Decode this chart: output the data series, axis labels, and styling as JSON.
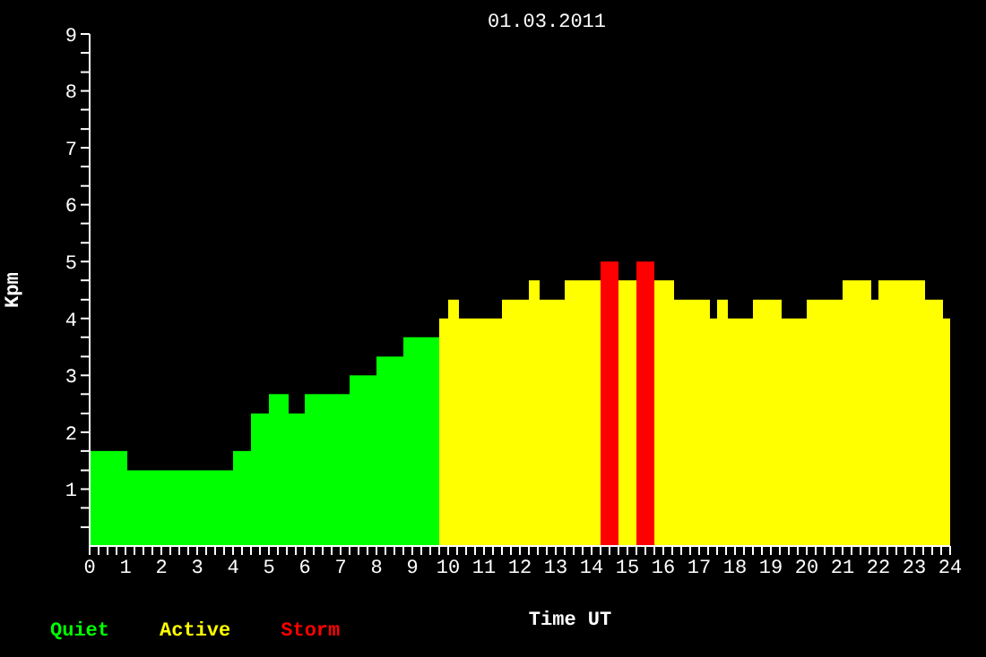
{
  "chart_data": {
    "type": "histogram",
    "title": "01.03.2011",
    "xlabel": "Time UT",
    "ylabel": "Kpm",
    "bins": [
      0,
      1.05,
      4.0,
      4.5,
      5.0,
      5.55,
      6.0,
      7.25,
      8.0,
      8.75,
      9.75,
      10.0,
      10.3,
      11.5,
      12.25,
      12.55,
      13.25,
      14.25,
      14.75,
      15.25,
      15.75,
      16.3,
      17.3,
      17.5,
      17.8,
      18.5,
      19.3,
      20.0,
      21.0,
      21.8,
      22.0,
      23.3,
      23.8,
      24
    ],
    "series": [
      {
        "name": "Quiet",
        "color": "#00ff00",
        "values": [
          1.67,
          1.33,
          1.67,
          2.33,
          2.67,
          2.33,
          2.67,
          3.0,
          3.33,
          3.67,
          null,
          null,
          null,
          null,
          null,
          null,
          null,
          null,
          null,
          null,
          null,
          null,
          null,
          null,
          null,
          null,
          null,
          null,
          null,
          null,
          null,
          null,
          null
        ]
      },
      {
        "name": "Active",
        "color": "#ffff00",
        "values": [
          null,
          null,
          null,
          null,
          null,
          null,
          null,
          null,
          null,
          null,
          4.0,
          4.33,
          4.0,
          4.33,
          4.67,
          4.33,
          4.67,
          null,
          4.67,
          null,
          4.67,
          4.33,
          4.0,
          4.33,
          4.0,
          4.33,
          4.0,
          4.33,
          4.67,
          4.33,
          4.67,
          4.33,
          4.0
        ]
      },
      {
        "name": "Storm",
        "color": "#ff0000",
        "values": [
          null,
          null,
          null,
          null,
          null,
          null,
          null,
          null,
          null,
          null,
          null,
          null,
          null,
          null,
          null,
          null,
          null,
          5.0,
          null,
          5.0,
          null,
          null,
          null,
          null,
          null,
          null,
          null,
          null,
          null,
          null,
          null,
          null,
          null
        ]
      }
    ],
    "xlim": [
      0,
      24
    ],
    "xticks": [
      0,
      {
        "value": 0.25,
        "label": null
      },
      {
        "value": 0.5,
        "label": null
      },
      {
        "value": 0.75,
        "label": null
      },
      1,
      {
        "value": 1.25,
        "label": null
      },
      {
        "value": 1.5,
        "label": null
      },
      {
        "value": 1.75,
        "label": null
      },
      2,
      {
        "value": 2.25,
        "label": null
      },
      {
        "value": 2.5,
        "label": null
      },
      {
        "value": 2.75,
        "label": null
      },
      3,
      {
        "value": 3.25,
        "label": null
      },
      {
        "value": 3.5,
        "label": null
      },
      {
        "value": 3.75,
        "label": null
      },
      4,
      {
        "value": 4.25,
        "label": null
      },
      {
        "value": 4.5,
        "label": null
      },
      {
        "value": 4.75,
        "label": null
      },
      5,
      {
        "value": 5.25,
        "label": null
      },
      {
        "value": 5.5,
        "label": null
      },
      {
        "value": 5.75,
        "label": null
      },
      6,
      {
        "value": 6.25,
        "label": null
      },
      {
        "value": 6.5,
        "label": null
      },
      {
        "value": 6.75,
        "label": null
      },
      7,
      {
        "value": 7.25,
        "label": null
      },
      {
        "value": 7.5,
        "label": null
      },
      {
        "value": 7.75,
        "label": null
      },
      8,
      {
        "value": 8.25,
        "label": null
      },
      {
        "value": 8.5,
        "label": null
      },
      {
        "value": 8.75,
        "label": null
      },
      9,
      {
        "value": 9.25,
        "label": null
      },
      {
        "value": 9.5,
        "label": null
      },
      {
        "value": 9.75,
        "label": null
      },
      10,
      {
        "value": 10.25,
        "label": null
      },
      {
        "value": 10.5,
        "label": null
      },
      {
        "value": 10.75,
        "label": null
      },
      11,
      {
        "value": 11.25,
        "label": null
      },
      {
        "value": 11.5,
        "label": null
      },
      {
        "value": 11.75,
        "label": null
      },
      12,
      {
        "value": 12.25,
        "label": null
      },
      {
        "value": 12.5,
        "label": null
      },
      {
        "value": 12.75,
        "label": null
      },
      13,
      {
        "value": 13.25,
        "label": null
      },
      {
        "value": 13.5,
        "label": null
      },
      {
        "value": 13.75,
        "label": null
      },
      14,
      {
        "value": 14.25,
        "label": null
      },
      {
        "value": 14.5,
        "label": null
      },
      {
        "value": 14.75,
        "label": null
      },
      15,
      {
        "value": 15.25,
        "label": null
      },
      {
        "value": 15.5,
        "label": null
      },
      {
        "value": 15.75,
        "label": null
      },
      16,
      {
        "value": 16.25,
        "label": null
      },
      {
        "value": 16.5,
        "label": null
      },
      {
        "value": 16.75,
        "label": null
      },
      17,
      {
        "value": 17.25,
        "label": null
      },
      {
        "value": 17.5,
        "label": null
      },
      {
        "value": 17.75,
        "label": null
      },
      18,
      {
        "value": 18.25,
        "label": null
      },
      {
        "value": 18.5,
        "label": null
      },
      {
        "value": 18.75,
        "label": null
      },
      19,
      {
        "value": 19.25,
        "label": null
      },
      {
        "value": 19.5,
        "label": null
      },
      {
        "value": 19.75,
        "label": null
      },
      20,
      {
        "value": 20.25,
        "label": null
      },
      {
        "value": 20.5,
        "label": null
      },
      {
        "value": 20.75,
        "label": null
      },
      21,
      {
        "value": 21.25,
        "label": null
      },
      {
        "value": 21.5,
        "label": null
      },
      {
        "value": 21.75,
        "label": null
      },
      22,
      {
        "value": 22.25,
        "label": null
      },
      {
        "value": 22.5,
        "label": null
      },
      {
        "value": 22.75,
        "label": null
      },
      23,
      {
        "value": 23.25,
        "label": null
      },
      {
        "value": 23.5,
        "label": null
      },
      {
        "value": 23.75,
        "label": null
      },
      24
    ],
    "ylim": [
      0,
      9
    ],
    "yticks": [
      {
        "value": 0.33,
        "label": null
      },
      {
        "value": 0.67,
        "label": null
      },
      1,
      {
        "value": 1.33,
        "label": null
      },
      {
        "value": 1.67,
        "label": null
      },
      2,
      {
        "value": 2.33,
        "label": null
      },
      {
        "value": 2.67,
        "label": null
      },
      3,
      {
        "value": 3.33,
        "label": null
      },
      {
        "value": 3.67,
        "label": null
      },
      4,
      {
        "value": 4.33,
        "label": null
      },
      {
        "value": 4.67,
        "label": null
      },
      5,
      {
        "value": 5.33,
        "label": null
      },
      {
        "value": 5.67,
        "label": null
      },
      6,
      {
        "value": 6.33,
        "label": null
      },
      {
        "value": 6.67,
        "label": null
      },
      7,
      {
        "value": 7.33,
        "label": null
      },
      {
        "value": 7.67,
        "label": null
      },
      8,
      {
        "value": 8.33,
        "label": null
      },
      {
        "value": 8.67,
        "label": null
      },
      9
    ],
    "legend": "bottom left"
  }
}
